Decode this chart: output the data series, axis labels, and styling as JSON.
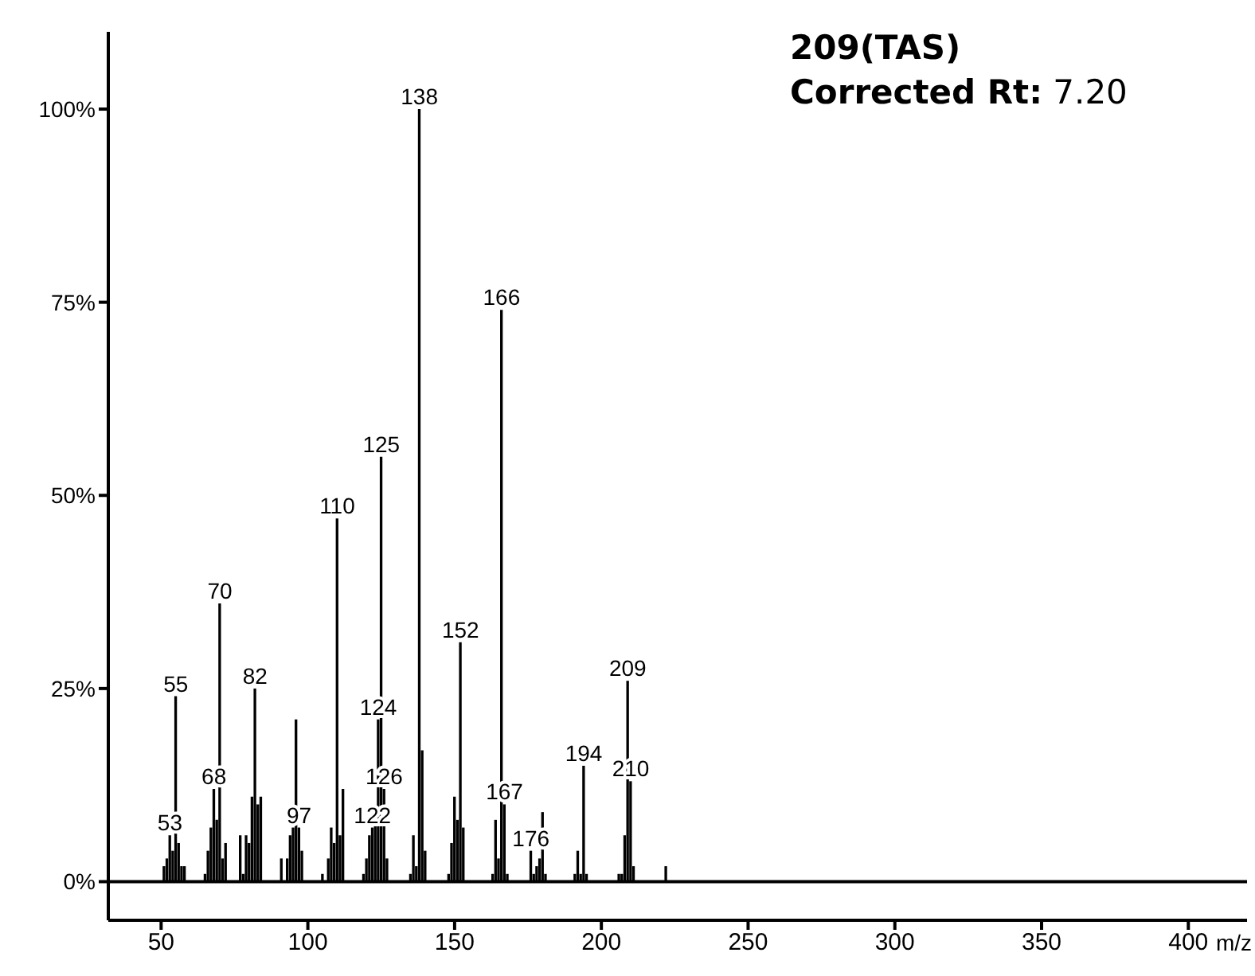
{
  "chart_data": {
    "type": "bar",
    "title": "209(TAS)",
    "subtitle": "Corrected Rt: 7.20",
    "xlabel": "m/z",
    "x": [
      51,
      52,
      53,
      54,
      55,
      56,
      57,
      58,
      65,
      66,
      67,
      68,
      69,
      70,
      71,
      72,
      77,
      78,
      79,
      80,
      81,
      82,
      83,
      84,
      91,
      93,
      94,
      95,
      96,
      97,
      98,
      105,
      107,
      108,
      109,
      110,
      111,
      112,
      119,
      120,
      121,
      122,
      123,
      124,
      125,
      126,
      127,
      135,
      136,
      137,
      138,
      139,
      140,
      148,
      149,
      150,
      151,
      152,
      153,
      163,
      164,
      165,
      166,
      167,
      168,
      176,
      177,
      178,
      179,
      180,
      181,
      191,
      192,
      193,
      194,
      195,
      206,
      207,
      208,
      209,
      210,
      211,
      222
    ],
    "values": [
      2,
      3,
      6,
      4,
      24,
      5,
      2,
      2,
      1,
      4,
      7,
      12,
      8,
      36,
      3,
      5,
      6,
      1,
      6,
      5,
      11,
      25,
      10,
      11,
      3,
      3,
      6,
      7,
      21,
      7,
      4,
      1,
      3,
      7,
      5,
      47,
      6,
      12,
      1,
      3,
      6,
      7,
      8,
      21,
      55,
      12,
      3,
      1,
      6,
      2,
      100,
      17,
      4,
      1,
      5,
      11,
      8,
      31,
      7,
      1,
      8,
      3,
      74,
      10,
      1,
      4,
      1,
      2,
      3,
      9,
      1,
      1,
      4,
      1,
      15,
      1,
      1,
      1,
      6,
      26,
      13,
      2,
      2
    ],
    "annotations": [
      {
        "text": "53",
        "x": 53,
        "y": 6
      },
      {
        "text": "55",
        "x": 55,
        "y": 24
      },
      {
        "text": "68",
        "x": 68,
        "y": 12
      },
      {
        "text": "70",
        "x": 70,
        "y": 36
      },
      {
        "text": "82",
        "x": 82,
        "y": 25
      },
      {
        "text": "97",
        "x": 97,
        "y": 7
      },
      {
        "text": "110",
        "x": 110,
        "y": 47
      },
      {
        "text": "122",
        "x": 122,
        "y": 7
      },
      {
        "text": "124",
        "x": 124,
        "y": 21
      },
      {
        "text": "125",
        "x": 125,
        "y": 55
      },
      {
        "text": "126",
        "x": 126,
        "y": 12
      },
      {
        "text": "138",
        "x": 138,
        "y": 100
      },
      {
        "text": "152",
        "x": 152,
        "y": 31
      },
      {
        "text": "166",
        "x": 166,
        "y": 74
      },
      {
        "text": "167",
        "x": 167,
        "y": 10
      },
      {
        "text": "176",
        "x": 176,
        "y": 4
      },
      {
        "text": "194",
        "x": 194,
        "y": 15
      },
      {
        "text": "209",
        "x": 209,
        "y": 26
      },
      {
        "text": "210",
        "x": 210,
        "y": 13
      }
    ],
    "color": "#000000",
    "xlim": [
      32,
      420
    ],
    "xticks": [
      50,
      100,
      150,
      200,
      250,
      300,
      350,
      400
    ],
    "ylim": [
      -5,
      110
    ],
    "yticks": [
      {
        "value": 0,
        "label": "0%"
      },
      {
        "value": 25,
        "label": "25%"
      },
      {
        "value": 50,
        "label": "50%"
      },
      {
        "value": 75,
        "label": "75%"
      },
      {
        "value": 100,
        "label": "100%"
      }
    ],
    "ref_lines": [
      {
        "axis": "y",
        "value": 0,
        "label": null,
        "color": "#000000"
      }
    ],
    "grid": false,
    "legend": false
  }
}
